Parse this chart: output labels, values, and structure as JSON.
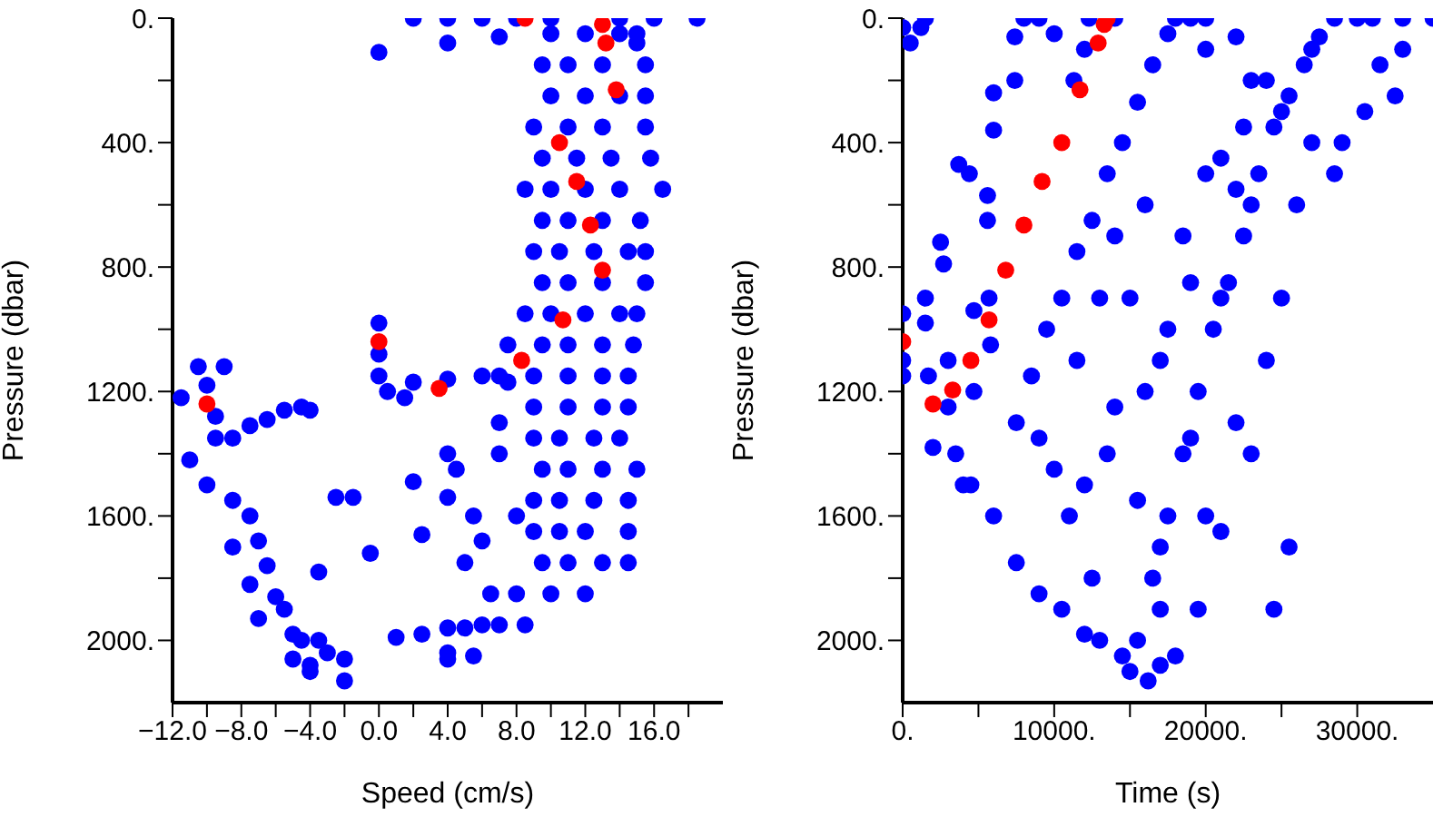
{
  "chart_data": [
    {
      "type": "scatter",
      "xlabel": "Speed (cm/s)",
      "ylabel": "Pressure (dbar)",
      "marker": "circle",
      "xlim": [
        -12,
        20
      ],
      "ylim": [
        2200,
        0
      ],
      "xticks": [
        {
          "value": -12,
          "label": "−12.0"
        },
        {
          "value": -10,
          "label": null
        },
        {
          "value": -8,
          "label": "−8.0"
        },
        {
          "value": -6,
          "label": null
        },
        {
          "value": -4,
          "label": "−4.0"
        },
        {
          "value": -2,
          "label": null
        },
        {
          "value": 0,
          "label": "0.0"
        },
        {
          "value": 2,
          "label": null
        },
        {
          "value": 4,
          "label": "4.0"
        },
        {
          "value": 6,
          "label": null
        },
        {
          "value": 8,
          "label": "8.0"
        },
        {
          "value": 10,
          "label": null
        },
        {
          "value": 12,
          "label": "12.0"
        },
        {
          "value": 14,
          "label": null
        },
        {
          "value": 16,
          "label": "16.0"
        },
        {
          "value": 18,
          "label": null
        }
      ],
      "yticks": [
        {
          "value": 0,
          "label": "0."
        },
        {
          "value": 200,
          "label": null
        },
        {
          "value": 400,
          "label": "400."
        },
        {
          "value": 600,
          "label": null
        },
        {
          "value": 800,
          "label": "800."
        },
        {
          "value": 1000,
          "label": null
        },
        {
          "value": 1200,
          "label": "1200."
        },
        {
          "value": 1400,
          "label": null
        },
        {
          "value": 1600,
          "label": "1600."
        },
        {
          "value": 1800,
          "label": null
        },
        {
          "value": 2000,
          "label": "2000."
        }
      ],
      "series": [
        {
          "color": "#0000ff",
          "x": [
            2,
            4,
            6,
            8,
            10,
            14,
            16,
            18.5,
            0,
            4,
            7,
            15,
            10,
            12,
            14,
            15,
            9.5,
            11,
            13,
            15.5,
            10,
            12,
            14,
            15.5,
            9,
            11,
            13,
            15.5,
            9.5,
            11.5,
            13.5,
            15.8,
            8.5,
            10,
            12,
            14,
            16.5,
            9.5,
            11,
            13,
            15.2,
            9,
            10.5,
            12.5,
            14.5,
            15.5,
            9.5,
            11,
            13,
            15.5,
            8.5,
            10,
            12,
            14,
            15,
            7.5,
            9.5,
            11,
            13,
            14.8,
            7,
            9,
            11,
            13,
            14.5,
            9,
            11,
            13,
            14.5,
            9,
            10.5,
            12.5,
            14,
            9.5,
            11,
            13,
            15,
            9,
            10.5,
            12.5,
            14.5,
            9,
            10.5,
            12,
            14.5,
            9.5,
            11,
            13,
            14.5,
            8,
            10,
            12,
            6,
            7,
            8.5,
            0.5,
            2,
            4,
            6,
            7.5,
            1.5,
            1,
            2.5,
            4,
            5,
            4,
            5.5,
            4,
            4,
            2,
            -1.5,
            -2.5,
            -0.5,
            -3.5,
            4,
            2.5,
            5,
            6,
            6.5,
            7,
            8,
            5.5,
            4.5,
            7,
            0,
            0,
            0,
            -10.5,
            -9,
            -11.5,
            -10,
            -9.5,
            -11,
            -9.5,
            -8.5,
            -10,
            -8.5,
            -7.5,
            -8.5,
            -7,
            -6.5,
            -7.5,
            -6,
            -5.5,
            -7,
            -5,
            -4.5,
            -3.5,
            -5,
            -4,
            -3,
            -4,
            -2,
            -2,
            -7.5,
            -6.5,
            -5.5,
            -4.5,
            -4
          ],
          "values": [
            0,
            0,
            0,
            0,
            0,
            0,
            0,
            0,
            110,
            80,
            60,
            80,
            50,
            50,
            50,
            50,
            150,
            150,
            150,
            150,
            250,
            250,
            250,
            250,
            350,
            350,
            350,
            350,
            450,
            450,
            450,
            450,
            550,
            550,
            550,
            550,
            550,
            650,
            650,
            650,
            650,
            750,
            750,
            750,
            750,
            750,
            850,
            850,
            850,
            850,
            950,
            950,
            950,
            950,
            950,
            1050,
            1050,
            1050,
            1050,
            1050,
            1150,
            1150,
            1150,
            1150,
            1150,
            1250,
            1250,
            1250,
            1250,
            1350,
            1350,
            1350,
            1350,
            1450,
            1450,
            1450,
            1450,
            1550,
            1550,
            1550,
            1550,
            1650,
            1650,
            1650,
            1650,
            1750,
            1750,
            1750,
            1750,
            1850,
            1850,
            1850,
            1950,
            1950,
            1950,
            1200,
            1170,
            1160,
            1150,
            1170,
            1220,
            1990,
            1980,
            1960,
            1960,
            2040,
            2050,
            2060,
            1400,
            1490,
            1540,
            1540,
            1720,
            1780,
            1540,
            1660,
            1750,
            1680,
            1850,
            1400,
            1600,
            1600,
            1450,
            1300,
            980,
            1080,
            1150,
            1120,
            1120,
            1220,
            1180,
            1280,
            1420,
            1350,
            1350,
            1500,
            1550,
            1600,
            1700,
            1680,
            1760,
            1820,
            1860,
            1900,
            1930,
            1980,
            2000,
            2000,
            2060,
            2080,
            2040,
            2100,
            2130,
            2060,
            1310,
            1290,
            1260,
            1250,
            1260
          ]
        },
        {
          "color": "#ff0000",
          "x": [
            8.5,
            13,
            13.2,
            13.8,
            10.5,
            11.5,
            12.3,
            13,
            10.7,
            8.3,
            3.5,
            0,
            -10
          ],
          "values": [
            0,
            20,
            80,
            230,
            400,
            525,
            665,
            810,
            970,
            1100,
            1190,
            1040,
            1240
          ]
        }
      ]
    },
    {
      "type": "scatter",
      "xlabel": "Time (s)",
      "ylabel": "Pressure (dbar)",
      "marker": "circle",
      "xlim": [
        0,
        35000
      ],
      "ylim": [
        2200,
        0
      ],
      "xticks": [
        {
          "value": 0,
          "label": "0."
        },
        {
          "value": 5000,
          "label": null
        },
        {
          "value": 10000,
          "label": "10000."
        },
        {
          "value": 15000,
          "label": null
        },
        {
          "value": 20000,
          "label": "20000."
        },
        {
          "value": 25000,
          "label": null
        },
        {
          "value": 30000,
          "label": "30000."
        }
      ],
      "yticks": [
        {
          "value": 0,
          "label": "0."
        },
        {
          "value": 200,
          "label": null
        },
        {
          "value": 400,
          "label": "400."
        },
        {
          "value": 600,
          "label": null
        },
        {
          "value": 800,
          "label": "800."
        },
        {
          "value": 1000,
          "label": null
        },
        {
          "value": 1200,
          "label": "1200."
        },
        {
          "value": 1400,
          "label": null
        },
        {
          "value": 1600,
          "label": "1600."
        },
        {
          "value": 1800,
          "label": null
        },
        {
          "value": 2000,
          "label": "2000."
        }
      ],
      "series": [
        {
          "color": "#0000ff",
          "x": [
            0,
            0,
            0,
            0,
            500,
            1500,
            1200,
            1500,
            1500,
            1700,
            3000,
            3000,
            4000,
            2500,
            2700,
            4700,
            4700,
            5700,
            5800,
            3700,
            4400,
            5600,
            5600,
            6000,
            6000,
            7400,
            7400,
            8000,
            9000,
            10000,
            11300,
            12000,
            12300,
            14000,
            2000,
            3500,
            4500,
            6000,
            7500,
            9000,
            10500,
            12000,
            13000,
            14500,
            15000,
            16200,
            17000,
            18000,
            15500,
            16500,
            17500,
            18500,
            19500,
            20500,
            21500,
            22500,
            23500,
            24500,
            25500,
            26500,
            27500,
            28500,
            30000,
            31000,
            33000,
            35000,
            17000,
            19000,
            21000,
            23000,
            25000,
            27000,
            7500,
            8500,
            9500,
            10500,
            11500,
            12500,
            13500,
            14500,
            15500,
            16500,
            17500,
            18000,
            19000,
            20000,
            10000,
            11000,
            12000,
            13500,
            14000,
            15500,
            16000,
            17000,
            17500,
            18500,
            19000,
            20000,
            21000,
            22000,
            22500,
            23000,
            24000,
            20000,
            21000,
            19500,
            22000,
            23000,
            24000,
            25000,
            26000,
            27000,
            28500,
            29000,
            30500,
            31500,
            33000,
            32500,
            15000,
            14000,
            16000,
            11500,
            9000,
            13000,
            24500,
            25500,
            17000,
            12500,
            20000,
            22000
          ],
          "values": [
            30,
            1150,
            950,
            1100,
            80,
            0,
            30,
            900,
            980,
            1150,
            1100,
            1250,
            1500,
            720,
            790,
            940,
            1200,
            900,
            1050,
            470,
            500,
            650,
            570,
            240,
            360,
            200,
            60,
            0,
            0,
            50,
            200,
            100,
            0,
            0,
            1380,
            1400,
            1500,
            1600,
            1750,
            1850,
            1900,
            1980,
            2000,
            2050,
            2100,
            2130,
            2080,
            2050,
            2000,
            1800,
            1600,
            1400,
            1200,
            1000,
            850,
            700,
            500,
            350,
            250,
            150,
            60,
            0,
            0,
            0,
            0,
            0,
            1700,
            1350,
            900,
            600,
            300,
            100,
            1300,
            1150,
            1000,
            900,
            750,
            650,
            500,
            400,
            270,
            150,
            50,
            0,
            0,
            0,
            1450,
            1600,
            1500,
            1400,
            1250,
            1550,
            1200,
            1100,
            1000,
            700,
            850,
            500,
            450,
            550,
            350,
            200,
            200,
            1600,
            1650,
            1900,
            1300,
            1400,
            1100,
            900,
            600,
            400,
            500,
            400,
            300,
            150,
            100,
            250,
            900,
            700,
            600,
            1100,
            1350,
            900,
            1900,
            1700,
            1900,
            1800,
            100,
            60
          ]
        },
        {
          "color": "#ff0000",
          "x": [
            0,
            2000,
            3300,
            4500,
            5700,
            6800,
            8000,
            9200,
            10500,
            11700,
            12900,
            13300,
            13500
          ],
          "values": [
            1040,
            1240,
            1195,
            1100,
            970,
            810,
            665,
            525,
            400,
            230,
            80,
            20,
            0
          ]
        }
      ]
    }
  ]
}
